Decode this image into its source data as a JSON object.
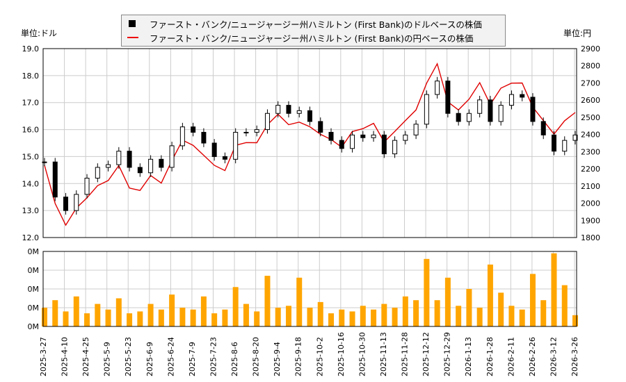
{
  "units": {
    "left": "単位:ドル",
    "right": "単位:円"
  },
  "legend": [
    {
      "label": "ファースト・バンク/ニュージャージー州ハミルトン (First Bank)のドルベースの株価",
      "color": "#000000"
    },
    {
      "label": "ファースト・バンク/ニュージャージー州ハミルトン (First Bank)の円ベースの株価",
      "color": "#e00000"
    }
  ],
  "chart_data": [
    {
      "type": "line",
      "title": "",
      "x_tick_labels": [
        "2025-3-27",
        "2025-4-10",
        "2025-4-25",
        "2025-5-9",
        "2025-5-23",
        "2025-6-9",
        "2025-6-24",
        "2025-7-9",
        "2025-7-23",
        "2025-8-6",
        "2025-8-20",
        "2025-9-4",
        "2025-9-18",
        "2025-10-2",
        "2025-10-16",
        "2025-10-30",
        "2025-11-13",
        "2025-11-28",
        "2025-12-12",
        "2025-12-29",
        "2026-1-13",
        "2026-1-28",
        "2026-2-11",
        "2026-2-26",
        "2026-3-12",
        "2026-3-26"
      ],
      "y_left": {
        "label": "単位:ドル",
        "ylim": [
          12.0,
          19.0
        ],
        "ticks": [
          "12.0",
          "13.0",
          "14.0",
          "15.0",
          "16.0",
          "17.0",
          "18.0",
          "19.0"
        ]
      },
      "y_right": {
        "label": "単位:円",
        "ylim": [
          1800,
          2900
        ],
        "ticks": [
          "1800",
          "1900",
          "2000",
          "2100",
          "2200",
          "2300",
          "2400",
          "2500",
          "2600",
          "2700",
          "2800",
          "2900"
        ]
      },
      "grid": true,
      "legend_position": "top-center",
      "series": [
        {
          "name": "ファースト・バンク/ニュージャージー州ハミルトン (First Bank)のドルベースの株価",
          "axis": "left",
          "style": "candlestick",
          "color": "#000000",
          "values": [
            14.8,
            13.5,
            13.0,
            13.6,
            14.2,
            14.6,
            14.7,
            15.2,
            14.6,
            14.4,
            14.9,
            14.6,
            15.4,
            16.1,
            15.9,
            15.5,
            15.0,
            14.9,
            15.9,
            15.9,
            16.0,
            16.6,
            16.9,
            16.6,
            16.7,
            16.3,
            15.9,
            15.6,
            15.3,
            15.8,
            15.7,
            15.8,
            15.1,
            15.6,
            15.8,
            16.2,
            17.3,
            17.8,
            16.6,
            16.3,
            16.6,
            17.1,
            16.3,
            16.9,
            17.3,
            17.2,
            16.3,
            15.8,
            15.2,
            15.6,
            15.8
          ]
        },
        {
          "name": "ファースト・バンク/ニュージャージー州ハミルトン (First Bank)の円ベースの株価",
          "axis": "right",
          "style": "line",
          "color": "#e00000",
          "values": [
            2220,
            1998,
            1872,
            1972,
            2031,
            2102,
            2132,
            2219,
            2088,
            2074,
            2161,
            2117,
            2248,
            2367,
            2337,
            2279,
            2220,
            2190,
            2337,
            2353,
            2352,
            2457,
            2518,
            2457,
            2472,
            2445,
            2401,
            2371,
            2326,
            2417,
            2434,
            2465,
            2356,
            2418,
            2481,
            2543,
            2699,
            2812,
            2590,
            2543,
            2606,
            2702,
            2575,
            2670,
            2699,
            2700,
            2559,
            2481,
            2402,
            2480,
            2528
          ]
        }
      ]
    },
    {
      "type": "bar",
      "title": "",
      "y_tick_labels": [
        "0M",
        "0M",
        "0M",
        "0M",
        "0M"
      ],
      "ylim": [
        0,
        0.4
      ],
      "grid": true,
      "color": "#ffa500",
      "values": [
        0.1,
        0.14,
        0.08,
        0.16,
        0.07,
        0.12,
        0.09,
        0.15,
        0.07,
        0.08,
        0.12,
        0.09,
        0.17,
        0.1,
        0.09,
        0.16,
        0.07,
        0.09,
        0.21,
        0.12,
        0.08,
        0.27,
        0.1,
        0.11,
        0.26,
        0.1,
        0.13,
        0.07,
        0.09,
        0.08,
        0.11,
        0.09,
        0.12,
        0.1,
        0.16,
        0.14,
        0.36,
        0.14,
        0.26,
        0.11,
        0.2,
        0.1,
        0.33,
        0.18,
        0.11,
        0.09,
        0.28,
        0.14,
        0.39,
        0.22,
        0.06
      ]
    }
  ]
}
